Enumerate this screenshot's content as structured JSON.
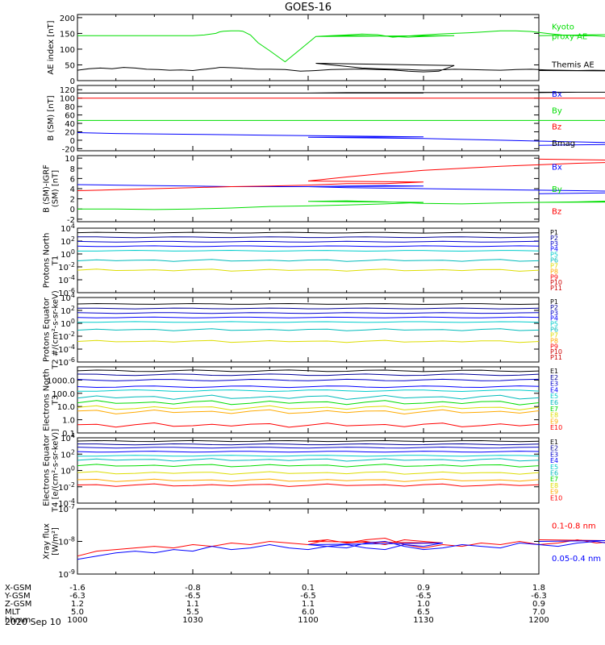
{
  "title": "GOES-16",
  "footer_date": "2020 Sep 10",
  "colors": {
    "black": "#000000",
    "blue": "#0000ff",
    "red": "#ff0000",
    "green": "#00dd00",
    "magenta": "#cc00cc",
    "darkblue": "#0000cc",
    "cyan": "#00cccc",
    "teal": "#00bbbb",
    "yellow": "#dddd00",
    "orange": "#ffaa00",
    "darkred": "#cc0000",
    "navy": "#000099"
  },
  "orbit": {
    "labels": [
      "X-GSM",
      "Y-GSM",
      "Z-GSM",
      "MLT",
      "hhmm"
    ],
    "columns": [
      [
        "-1.6",
        "-6.3",
        "1.2",
        "5.0",
        "1000"
      ],
      [
        "-0.8",
        "-6.5",
        "1.1",
        "5.5",
        "1030"
      ],
      [
        "0.1",
        "-6.5",
        "1.1",
        "6.0",
        "1100"
      ],
      [
        "0.9",
        "-6.5",
        "1.0",
        "6.5",
        "1130"
      ],
      [
        "1.8",
        "-6.3",
        "0.9",
        "7.0",
        "1200"
      ]
    ]
  },
  "chart_data": [
    {
      "type": "line",
      "panel": "ae",
      "ylabel": "AE index [nT]",
      "yticks": [
        "0",
        "50",
        "100",
        "150",
        "200"
      ],
      "ylim": [
        0,
        210
      ],
      "x": [
        1000,
        1003,
        1006,
        1009,
        1012,
        1015,
        1018,
        1021,
        1024,
        1027,
        1030,
        1033,
        1036,
        1037,
        1038,
        1040,
        1042,
        1043,
        1045,
        1047,
        1050,
        1054,
        1058,
        1062,
        1066,
        1070,
        1074,
        1078,
        1082,
        1086,
        1090,
        1094,
        1098,
        1102,
        1106,
        1110,
        1114,
        1118,
        1122,
        1126,
        1130,
        1134,
        1138,
        1142,
        1146,
        1150,
        1154,
        1158,
        1162,
        1166,
        1170,
        1174,
        1178,
        1182,
        1186,
        1190,
        1194,
        1198,
        1200
      ],
      "series": [
        {
          "name": "Kyoto proxy AE",
          "color": "green",
          "label_lines": [
            "Kyoto",
            "proxy AE"
          ],
          "values": [
            143,
            143,
            143,
            143,
            143,
            143,
            143,
            143,
            143,
            143,
            143,
            145,
            150,
            155,
            157,
            158,
            158,
            157,
            145,
            120,
            95,
            60,
            100,
            140,
            143,
            143,
            143,
            142,
            140,
            138,
            140,
            142,
            143,
            140,
            143,
            145,
            148,
            146,
            138,
            142,
            145,
            148,
            150,
            152,
            155,
            158,
            158,
            156,
            150,
            145,
            143,
            143,
            140,
            142,
            145,
            148,
            155,
            150,
            143
          ]
        },
        {
          "name": "Themis AE",
          "color": "black",
          "label_lines": [
            "Themis AE"
          ],
          "values": [
            33,
            38,
            40,
            38,
            42,
            40,
            36,
            35,
            33,
            34,
            32,
            36,
            40,
            42,
            42,
            41,
            40,
            39,
            38,
            36,
            36,
            35,
            30,
            32,
            35,
            36,
            37,
            35,
            34,
            30,
            28,
            30,
            48,
            55,
            50,
            45,
            40,
            38,
            36,
            35,
            33,
            34,
            36,
            35,
            34,
            33,
            35,
            36,
            34,
            33,
            32,
            33,
            32,
            31,
            30,
            32,
            31,
            30,
            32
          ]
        }
      ]
    },
    {
      "type": "line",
      "panel": "b_sm",
      "ylabel": "B (SM) [nT]",
      "yticks": [
        "-20",
        "0",
        "20",
        "40",
        "60",
        "80",
        "100",
        "120"
      ],
      "ylim": [
        -25,
        130
      ],
      "x": [
        1000,
        1010,
        1020,
        1030,
        1040,
        1050,
        1060,
        1070,
        1080,
        1090,
        1100,
        1110,
        1120,
        1130,
        1140,
        1150,
        1160,
        1170,
        1180,
        1190,
        1200
      ],
      "series": [
        {
          "name": "Bx",
          "color": "blue",
          "values": [
            18,
            16,
            15,
            14,
            13,
            12,
            11,
            10,
            9,
            8,
            7,
            6,
            5,
            4,
            2,
            0,
            -2,
            -4,
            -6,
            -9,
            -12
          ]
        },
        {
          "name": "By",
          "color": "green",
          "values": [
            47,
            47,
            47,
            47,
            47,
            47,
            47,
            47,
            47,
            47,
            47,
            47,
            47,
            47,
            47,
            47,
            47,
            47,
            47,
            47,
            47
          ]
        },
        {
          "name": "Bz",
          "color": "red",
          "values": [
            100,
            100,
            100,
            100,
            100,
            100,
            100,
            100,
            100,
            100,
            100,
            100,
            100,
            100,
            100,
            100,
            100,
            100,
            100,
            100,
            100
          ]
        },
        {
          "name": "Bmag",
          "color": "black",
          "values": [
            112,
            112,
            112,
            112,
            112,
            112,
            112,
            112,
            112,
            112,
            112,
            113,
            113,
            113,
            113,
            113,
            113,
            114,
            114,
            114,
            114
          ]
        }
      ]
    },
    {
      "type": "line",
      "panel": "b_igrf",
      "ylabel": "B (SM)-IGRF (SM) [nT]",
      "yticks": [
        "-2",
        "0",
        "2",
        "4",
        "6",
        "8",
        "10"
      ],
      "ylim": [
        -2.5,
        10.5
      ],
      "x": [
        1000,
        1010,
        1020,
        1030,
        1040,
        1050,
        1060,
        1070,
        1080,
        1090,
        1100,
        1110,
        1120,
        1130,
        1140,
        1150,
        1160,
        1170,
        1180,
        1190,
        1200
      ],
      "series": [
        {
          "name": "Bx",
          "color": "blue",
          "values": [
            4.8,
            4.7,
            4.6,
            4.5,
            4.4,
            4.4,
            4.4,
            4.5,
            4.6,
            4.5,
            4.4,
            4.2,
            4.1,
            4.0,
            3.9,
            3.8,
            3.7,
            3.6,
            3.5,
            3.3,
            3.0
          ]
        },
        {
          "name": "By",
          "color": "green",
          "values": [
            0.0,
            0.0,
            -0.1,
            0.0,
            0.2,
            0.5,
            0.6,
            0.8,
            1.0,
            1.3,
            1.5,
            1.6,
            1.4,
            1.1,
            1.0,
            1.2,
            1.3,
            1.4,
            1.6,
            1.4,
            1.3
          ]
        },
        {
          "name": "Bz",
          "color": "red",
          "values": [
            3.6,
            3.8,
            4.0,
            4.2,
            4.4,
            4.5,
            4.7,
            5.0,
            5.0,
            5.3,
            5.5,
            6.3,
            7.0,
            7.6,
            8.0,
            8.4,
            8.7,
            9.0,
            9.2,
            9.5,
            9.8
          ]
        }
      ]
    },
    {
      "type": "line",
      "panel": "protons_north",
      "ylabel": "Protons North T1",
      "log": true,
      "ylim_exp": [
        -6,
        4
      ],
      "yticks": [
        "10^4",
        "10^2",
        "10^0",
        "10^-2",
        "10^-4",
        "10^-6"
      ],
      "series_names": [
        "P1",
        "P2",
        "P3",
        "P4",
        "P5",
        "P6",
        "P7",
        "P8",
        "P9",
        "P10",
        "P11"
      ],
      "series_colors": [
        "black",
        "navy",
        "darkblue",
        "blue",
        "cyan",
        "teal",
        "yellow",
        "orange",
        "red",
        "darkred",
        "darkred"
      ],
      "levels_exp": [
        3.3,
        2.6,
        1.9,
        1.2,
        0.5,
        -1.0,
        -2.5,
        null,
        null,
        null,
        null
      ]
    },
    {
      "type": "line",
      "panel": "protons_equator",
      "ylabel": "Protons Equator T2 #/(cm²-s-sr-keV)",
      "log": true,
      "ylim_exp": [
        -6,
        4
      ],
      "yticks": [
        "10^4",
        "10^2",
        "10^0",
        "10^-2",
        "10^-4",
        "10^-6"
      ],
      "series_names": [
        "P1",
        "P2",
        "P3",
        "P4",
        "P5",
        "P6",
        "P7",
        "P8",
        "P9",
        "P10",
        "P11"
      ],
      "series_colors": [
        "black",
        "navy",
        "darkblue",
        "blue",
        "cyan",
        "teal",
        "yellow",
        "orange",
        "red",
        "darkred",
        "darkred"
      ],
      "levels_exp": [
        3.0,
        2.3,
        1.6,
        0.9,
        0.2,
        -1.0,
        -2.8,
        null,
        null,
        null,
        null
      ]
    },
    {
      "type": "line",
      "panel": "electrons_north",
      "ylabel": "Electrons North T3",
      "log": true,
      "ylim_exp": [
        -1,
        4
      ],
      "yticks": [
        "1000.0",
        "100.0",
        "10.0",
        "1.0",
        "0.1"
      ],
      "series_names": [
        "E1",
        "E2",
        "E3",
        "E4",
        "E5",
        "E6",
        "E7",
        "E8",
        "E9",
        "E10"
      ],
      "series_colors": [
        "black",
        "navy",
        "darkblue",
        "blue",
        "cyan",
        "teal",
        "green",
        "yellow",
        "orange",
        "red"
      ],
      "levels_exp": [
        3.7,
        3.4,
        3.0,
        2.5,
        2.2,
        1.7,
        1.3,
        0.9,
        0.6,
        -0.4
      ]
    },
    {
      "type": "line",
      "panel": "electrons_equator",
      "ylabel": "Electrons Equator T4 [e/(cm²-s-sr-keV)]",
      "log": true,
      "ylim_exp": [
        -4,
        4
      ],
      "yticks": [
        "10^4",
        "10^2",
        "10^0",
        "10^-2",
        "10^-4"
      ],
      "series_names": [
        "E1",
        "E2",
        "E3",
        "E4",
        "E5",
        "E6",
        "E7",
        "E8",
        "E9",
        "E10"
      ],
      "series_colors": [
        "black",
        "navy",
        "darkblue",
        "blue",
        "cyan",
        "teal",
        "green",
        "yellow",
        "orange",
        "red"
      ],
      "levels_exp": [
        3.6,
        3.2,
        2.8,
        2.3,
        1.8,
        1.3,
        0.6,
        -0.3,
        -1.2,
        -1.8
      ]
    },
    {
      "type": "line",
      "panel": "xray",
      "ylabel": "Xray flux [W/m²]",
      "log": true,
      "ylim_exp": [
        -9,
        -7
      ],
      "yticks": [
        "10^-7",
        "10^-8",
        "10^-9"
      ],
      "x": [
        1000,
        1005,
        1010,
        1015,
        1020,
        1025,
        1030,
        1035,
        1040,
        1045,
        1050,
        1055,
        1060,
        1065,
        1070,
        1075,
        1080,
        1085,
        1090,
        1095,
        1100,
        1105,
        1110,
        1115,
        1120,
        1125,
        1130,
        1135,
        1140,
        1145,
        1150,
        1155,
        1160,
        1165,
        1170,
        1175,
        1180,
        1185,
        1190,
        1195,
        1200
      ],
      "series": [
        {
          "name": "0.1-0.8 nm",
          "color": "red",
          "values_exp": [
            -8.45,
            -8.3,
            -8.25,
            -8.2,
            -8.15,
            -8.2,
            -8.1,
            -8.15,
            -8.05,
            -8.1,
            -8.0,
            -8.05,
            -8.1,
            -7.95,
            -8.05,
            -8.0,
            -8.1,
            -7.95,
            -8.0,
            -8.05,
            -8.0,
            -7.95,
            -8.05,
            -7.95,
            -7.9,
            -8.1,
            -8.2,
            -8.1,
            -8.15,
            -8.05,
            -8.1,
            -8.0,
            -8.1,
            -8.05,
            -7.95,
            -8.05,
            -8.0,
            -7.95,
            -7.95,
            -8.0,
            -7.95
          ]
        },
        {
          "name": "0.05-0.4 nm",
          "color": "blue",
          "values_exp": [
            -8.55,
            -8.45,
            -8.35,
            -8.3,
            -8.35,
            -8.25,
            -8.3,
            -8.15,
            -8.25,
            -8.2,
            -8.1,
            -8.2,
            -8.25,
            -8.15,
            -8.1,
            -8.2,
            -8.25,
            -8.1,
            -8.15,
            -8.05,
            -8.1,
            -8.15,
            -8.2,
            -8.05,
            -8.0,
            -8.15,
            -8.25,
            -8.2,
            -8.1,
            -8.15,
            -8.2,
            -8.05,
            -8.1,
            -8.15,
            -8.05,
            -8.0,
            -8.1,
            -8.0,
            -8.05,
            -7.95,
            -8.0
          ]
        }
      ]
    }
  ]
}
